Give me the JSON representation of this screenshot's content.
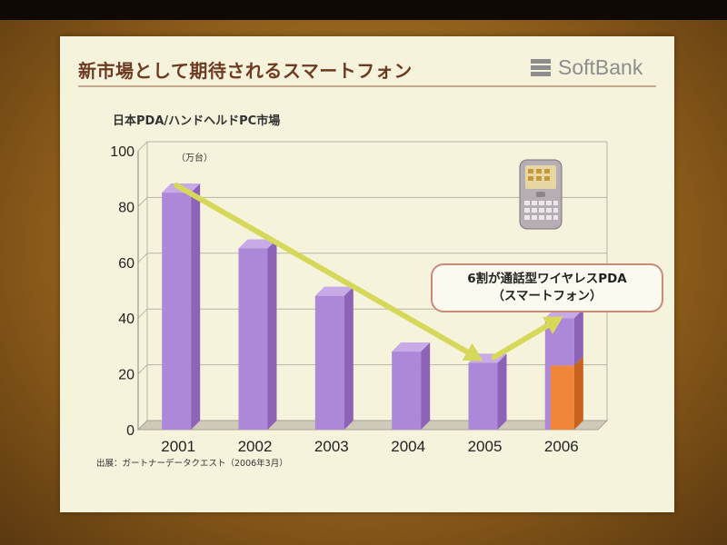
{
  "slide": {
    "title": "新市場として期待されるスマートフォン",
    "logo_text": "SoftBank",
    "source_note": "出展：ガートナーデータクエスト（2006年3月）",
    "callout_line1": "6割が通話型ワイヤレスPDA",
    "callout_line2": "（スマートフォン）"
  },
  "chart_data": {
    "type": "bar",
    "title": "日本PDA/ハンドヘルドPC市場",
    "unit_label": "（万台）",
    "categories": [
      "2001",
      "2002",
      "2003",
      "2004",
      "2005",
      "2006"
    ],
    "values": [
      85,
      65,
      48,
      28,
      24,
      40
    ],
    "stacked_lower_2006": 23,
    "y_ticks": [
      "0",
      "20",
      "40",
      "60",
      "80",
      "100"
    ],
    "ylim": [
      0,
      100
    ],
    "grid": true,
    "trend_arrows": [
      {
        "from": "2001",
        "to": "2005"
      },
      {
        "from": "2005",
        "to": "2006"
      }
    ],
    "colors": {
      "bar_front": "#ad88d8",
      "bar_top": "#c7aae6",
      "bar_side": "#8d63b8",
      "lower_front": "#f0863a",
      "lower_side": "#c8621f",
      "arrow": "#d6d85a",
      "grid": "#b8b4a6",
      "floor": "#cfc9ba"
    }
  }
}
